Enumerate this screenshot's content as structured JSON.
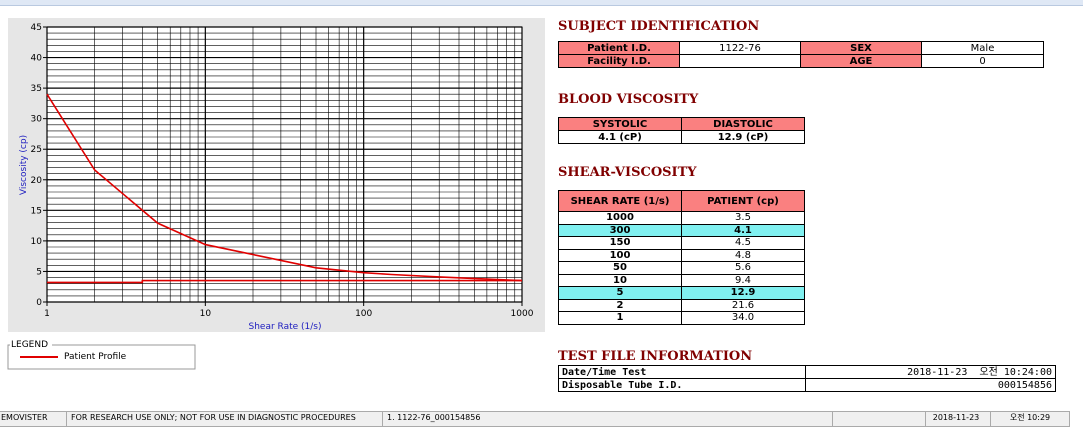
{
  "chart_data": {
    "type": "line",
    "x_label": "Shear Rate (1/s)",
    "y_label": "Viscosity (cp)",
    "xscale": "log",
    "xlim": [
      1,
      1000
    ],
    "xticks": [
      1,
      10,
      100,
      1000
    ],
    "xminorticks": [
      2,
      3,
      4,
      5,
      6,
      7,
      8,
      9,
      20,
      30,
      40,
      50,
      60,
      70,
      80,
      90,
      200,
      300,
      400,
      500,
      600,
      700,
      800,
      900
    ],
    "ylim": [
      0,
      45
    ],
    "yticks": [
      0,
      5,
      10,
      15,
      20,
      25,
      30,
      35,
      40,
      45
    ],
    "yminorticks": [
      1,
      2,
      3,
      4,
      6,
      7,
      8,
      9,
      11,
      12,
      13,
      14,
      16,
      17,
      18,
      19,
      21,
      22,
      23,
      24,
      26,
      27,
      28,
      29,
      31,
      32,
      33,
      34,
      36,
      37,
      38,
      39,
      41,
      42,
      43,
      44
    ],
    "grid": true,
    "legend_title": "LEGEND",
    "series": [
      {
        "name": "Patient Profile",
        "color": "#e00000",
        "x": [
          1,
          2,
          5,
          10,
          50,
          100,
          150,
          300,
          1000
        ],
        "values": [
          34.0,
          21.6,
          12.9,
          9.4,
          5.6,
          4.8,
          4.5,
          4.1,
          3.5
        ]
      },
      {
        "color": "#e00000",
        "x": [
          1,
          4,
          4,
          1000
        ],
        "values": [
          3.2,
          3.2,
          3.5,
          3.5
        ]
      }
    ]
  },
  "subject": {
    "title": "SUBJECT IDENTIFICATION",
    "patient_id_label": "Patient I.D.",
    "patient_id": "1122-76",
    "sex_label": "SEX",
    "sex": "Male",
    "facility_label": "Facility I.D.",
    "age_label": "AGE",
    "age": "0"
  },
  "blood": {
    "title": "BLOOD VISCOSITY",
    "headers": [
      "SYSTOLIC",
      "DIASTOLIC"
    ],
    "values": [
      "4.1 (cP)",
      "12.9 (cP)"
    ]
  },
  "shear": {
    "title": "SHEAR-VISCOSITY",
    "headers": [
      "SHEAR RATE (1/s)",
      "PATIENT (cp)"
    ],
    "highlighted_rows": [
      1,
      6
    ],
    "rows": [
      [
        "1000",
        "3.5"
      ],
      [
        "300",
        "4.1"
      ],
      [
        "150",
        "4.5"
      ],
      [
        "100",
        "4.8"
      ],
      [
        "50",
        "5.6"
      ],
      [
        "10",
        "9.4"
      ],
      [
        "5",
        "12.9"
      ],
      [
        "2",
        "21.6"
      ],
      [
        "1",
        "34.0"
      ]
    ]
  },
  "test_file": {
    "title": "TEST FILE INFORMATION",
    "rows": [
      [
        "Date/Time Test",
        "2018-11-23  오전 10:24:00"
      ],
      [
        "Disposable Tube I.D.",
        "000154856"
      ]
    ]
  },
  "status": [
    "EMOVISTER",
    "FOR RESEARCH USE ONLY; NOT FOR USE IN DIAGNOSTIC PROCEDURES",
    "1. 1122-76_000154856",
    "2018-11-23",
    "오전 10:29"
  ]
}
